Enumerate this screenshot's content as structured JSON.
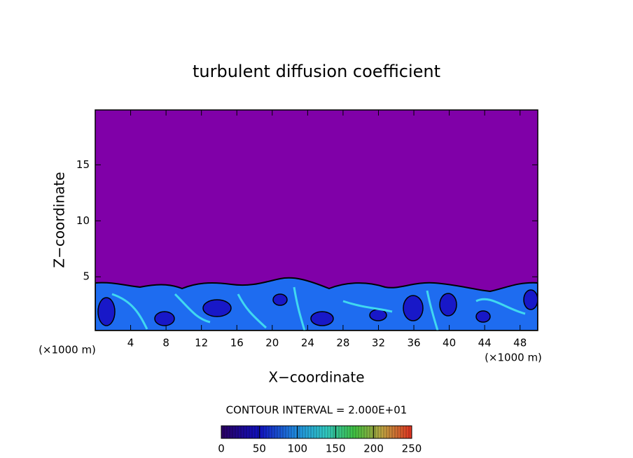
{
  "chart_data": {
    "type": "contour",
    "title": "turbulent diffusion coefficient",
    "x_label": "X−coordinate",
    "y_label": "Z−coordinate",
    "x_unit": "(×1000 m)",
    "y_unit": "(×1000 m)",
    "xlim": [
      0,
      50
    ],
    "xticks": [
      4,
      8,
      12,
      16,
      20,
      24,
      28,
      32,
      36,
      40,
      44,
      48
    ],
    "ylim": [
      0.2,
      19.9
    ],
    "yticks": [
      5,
      10,
      15
    ],
    "contour_note": "CONTOUR INTERVAL = 2.000E+01",
    "colorbar_lim": [
      0,
      250
    ],
    "colorbar_ticks": [
      0,
      50,
      100,
      150,
      200,
      250
    ],
    "background_color": "#8000a8"
  }
}
